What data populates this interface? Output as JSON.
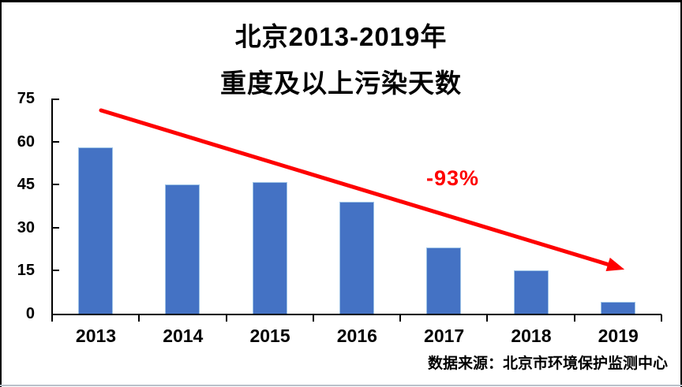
{
  "title": {
    "line1": "北京2013-2019年",
    "line2": "重度及以上污染天数"
  },
  "annotation": {
    "text": "-93%",
    "color": "#fe0000"
  },
  "source": {
    "text": "数据来源：北京市环境保护监测中心"
  },
  "chart_data": {
    "type": "bar",
    "title": "北京2013-2019年 重度及以上污染天数",
    "categories": [
      "2013",
      "2014",
      "2015",
      "2016",
      "2017",
      "2018",
      "2019"
    ],
    "values": [
      58,
      45,
      46,
      39,
      23,
      15,
      4
    ],
    "xlabel": "",
    "ylabel": "",
    "ylim": [
      0,
      75
    ],
    "yticks": [
      0,
      15,
      30,
      45,
      60,
      75
    ],
    "grid": false,
    "legend": "none",
    "bar_color": "#4472c4",
    "axis_color": "#000000",
    "trend_arrow": {
      "label": "-93%",
      "color": "#fe0000"
    },
    "source": "数据来源：北京市环境保护监测中心"
  }
}
